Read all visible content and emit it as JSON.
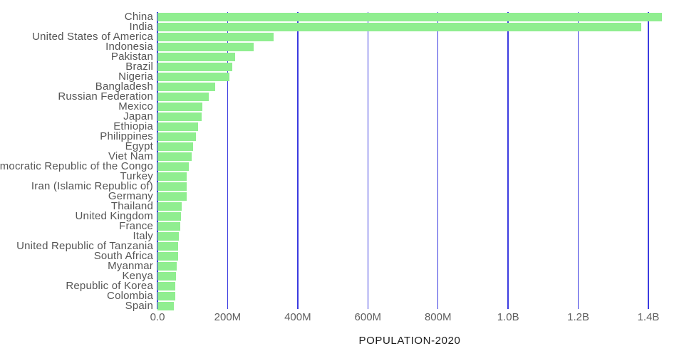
{
  "page": {
    "background_color": "#ffffff"
  },
  "chart_data": {
    "type": "bar",
    "orientation": "horizontal",
    "title": "POPULATION-2020",
    "xlabel": "POPULATION-2020",
    "ylabel": "",
    "legend": "none",
    "grid": "vertical-only",
    "bar_color": "#90ee90",
    "grid_color": "#3b3be0",
    "label_color": "#555555",
    "tick_color": "#5f5f5f",
    "title_color": "#1c1c1c",
    "x_tick_labels": [
      "0.0",
      "200M",
      "400M",
      "600M",
      "800M",
      "1.0B",
      "1.2B",
      "1.4B"
    ],
    "x_tick_values_millions": [
      0,
      200,
      400,
      600,
      800,
      1000,
      1200,
      1400
    ],
    "xlim_millions": [
      0,
      1450
    ],
    "categories": [
      "China",
      "India",
      "United States of America",
      "Indonesia",
      "Pakistan",
      "Brazil",
      "Nigeria",
      "Bangladesh",
      "Russian Federation",
      "Mexico",
      "Japan",
      "Ethiopia",
      "Philippines",
      "Egypt",
      "Viet Nam",
      "Democratic Republic of the Congo",
      "Turkey",
      "Iran (Islamic Republic of)",
      "Germany",
      "Thailand",
      "United Kingdom",
      "France",
      "Italy",
      "United Republic of Tanzania",
      "South Africa",
      "Myanmar",
      "Kenya",
      "Republic of Korea",
      "Colombia",
      "Spain"
    ],
    "values_millions": [
      1439.3,
      1380.0,
      331.0,
      273.5,
      220.9,
      212.6,
      206.1,
      164.7,
      145.9,
      128.9,
      126.5,
      115.0,
      109.6,
      102.3,
      97.3,
      89.6,
      84.3,
      84.0,
      83.8,
      69.8,
      67.9,
      65.3,
      60.5,
      59.7,
      59.3,
      54.4,
      53.8,
      51.3,
      50.9,
      46.8
    ]
  }
}
